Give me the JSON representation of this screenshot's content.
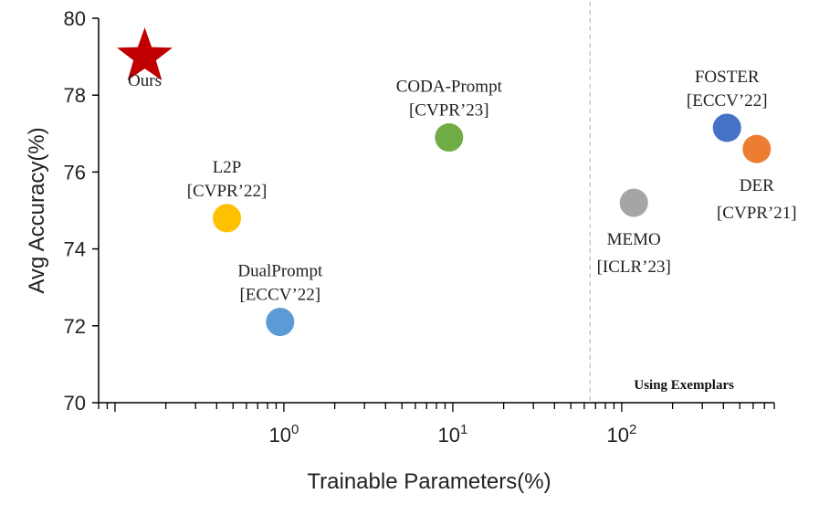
{
  "chart_data": {
    "type": "scatter",
    "xlabel": "Trainable Parameters(%)",
    "ylabel": "Avg Accuracy(%)",
    "x_scale": "log",
    "xlim": [
      0.08,
      800
    ],
    "ylim": [
      70,
      80
    ],
    "yticks": [
      70,
      72,
      74,
      76,
      78,
      80
    ],
    "xticks": [
      {
        "value": 1,
        "base": "10",
        "exp": "0"
      },
      {
        "value": 10,
        "base": "10",
        "exp": "1"
      },
      {
        "value": 100,
        "base": "10",
        "exp": "2"
      }
    ],
    "divider_x": 65,
    "region_note": "Using Exemplars",
    "points": [
      {
        "name": "Ours",
        "venue": "",
        "x": 0.15,
        "y": 79.0,
        "color": "#c00000",
        "marker": "star",
        "label_pos": "below"
      },
      {
        "name": "L2P",
        "venue": "[CVPR’22]",
        "x": 0.46,
        "y": 74.8,
        "color": "#ffc000",
        "marker": "circle",
        "label_pos": "above"
      },
      {
        "name": "DualPrompt",
        "venue": "[ECCV’22]",
        "x": 0.95,
        "y": 72.1,
        "color": "#5b9bd5",
        "marker": "circle",
        "label_pos": "above"
      },
      {
        "name": "CODA-Prompt",
        "venue": "[CVPR’23]",
        "x": 9.5,
        "y": 76.9,
        "color": "#70ad47",
        "marker": "circle",
        "label_pos": "above"
      },
      {
        "name": "MEMO",
        "venue": "[ICLR’23]",
        "x": 118,
        "y": 75.2,
        "color": "#a5a5a5",
        "marker": "circle",
        "label_pos": "below"
      },
      {
        "name": "FOSTER",
        "venue": "[ECCV’22]",
        "x": 420,
        "y": 77.15,
        "color": "#4472c4",
        "marker": "circle",
        "label_pos": "above"
      },
      {
        "name": "DER",
        "venue": "[CVPR’21]",
        "x": 630,
        "y": 76.6,
        "color": "#ed7d31",
        "marker": "circle",
        "label_pos": "below"
      }
    ]
  }
}
